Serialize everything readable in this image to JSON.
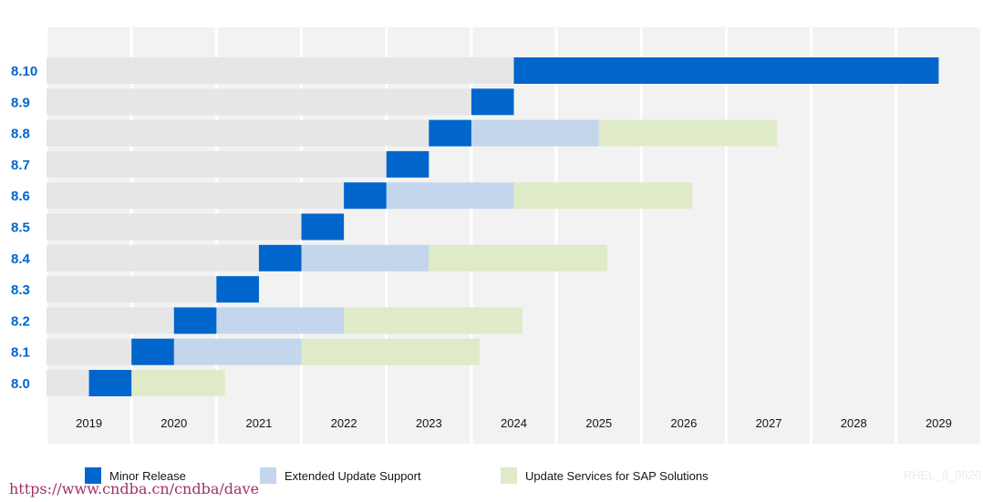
{
  "chart_data": {
    "type": "bar",
    "subtype": "gantt",
    "x_ticks": [
      "2019",
      "2020",
      "2021",
      "2022",
      "2023",
      "2024",
      "2025",
      "2026",
      "2027",
      "2028",
      "2029"
    ],
    "xlim": [
      2018.5,
      2029.5
    ],
    "grid": true,
    "legend_placement": "bottom",
    "colors": {
      "minor": "#0066cc",
      "eus": "#c3d6ec",
      "sap": "#dfebc8",
      "timeline_track": "#e6e6e6",
      "column_bg": "#f2f2f2",
      "label": "#0066cc",
      "tick": "#151515"
    },
    "series": [
      {
        "key": "minor",
        "name": "Minor Release"
      },
      {
        "key": "eus",
        "name": "Extended Update Support"
      },
      {
        "key": "sap",
        "name": "Update Services for SAP Solutions"
      }
    ],
    "releases": [
      {
        "label": "8.10",
        "minor": [
          2024.0,
          2029.0
        ],
        "eus": null,
        "sap": null
      },
      {
        "label": "8.9",
        "minor": [
          2023.5,
          2024.0
        ],
        "eus": null,
        "sap": null
      },
      {
        "label": "8.8",
        "minor": [
          2023.0,
          2023.5
        ],
        "eus": [
          2023.5,
          2025.0
        ],
        "sap": [
          2025.0,
          2027.1
        ]
      },
      {
        "label": "8.7",
        "minor": [
          2022.5,
          2023.0
        ],
        "eus": null,
        "sap": null
      },
      {
        "label": "8.6",
        "minor": [
          2022.0,
          2022.5
        ],
        "eus": [
          2022.5,
          2024.0
        ],
        "sap": [
          2024.0,
          2026.1
        ]
      },
      {
        "label": "8.5",
        "minor": [
          2021.5,
          2022.0
        ],
        "eus": null,
        "sap": null
      },
      {
        "label": "8.4",
        "minor": [
          2021.0,
          2021.5
        ],
        "eus": [
          2021.5,
          2023.0
        ],
        "sap": [
          2023.0,
          2025.1
        ]
      },
      {
        "label": "8.3",
        "minor": [
          2020.5,
          2021.0
        ],
        "eus": null,
        "sap": null
      },
      {
        "label": "8.2",
        "minor": [
          2020.0,
          2020.5
        ],
        "eus": [
          2020.5,
          2022.0
        ],
        "sap": [
          2022.0,
          2024.1
        ]
      },
      {
        "label": "8.1",
        "minor": [
          2019.5,
          2020.0
        ],
        "eus": [
          2020.0,
          2021.5
        ],
        "sap": [
          2021.5,
          2023.6
        ]
      },
      {
        "label": "8.0",
        "minor": [
          2019.0,
          2019.5
        ],
        "eus": null,
        "sap": [
          2019.5,
          2020.6
        ]
      }
    ]
  },
  "legend": {
    "minor_label": "Minor Release",
    "eus_label": "Extended Update Support",
    "sap_label": "Update Services for SAP Solutions"
  },
  "footer": {
    "image_id": "RHEL_8_0620",
    "source_url": "https://www.cndba.cn/cndba/dave"
  }
}
